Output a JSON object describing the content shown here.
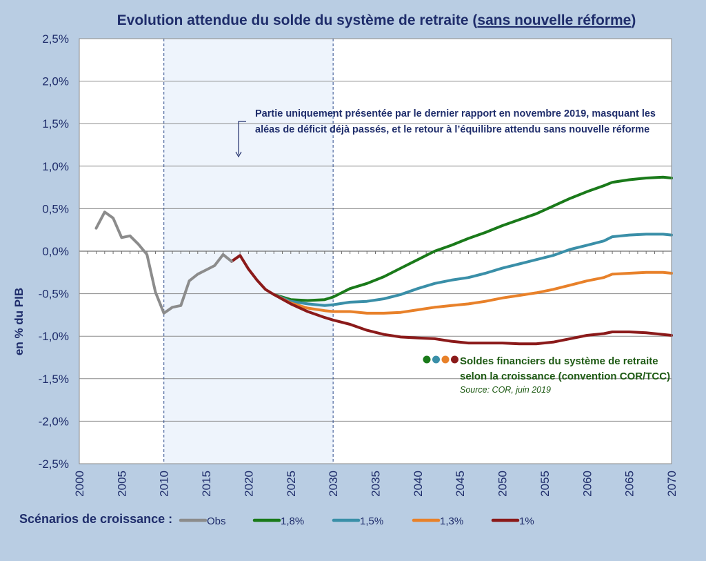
{
  "chart_data": {
    "type": "line",
    "title": {
      "prefix": "Evolution attendue du solde du système de retraite (",
      "underlined": "sans nouvelle réforme",
      "suffix": ")"
    },
    "ylabel": "en % du PIB",
    "xlim": [
      2000,
      2070
    ],
    "ylim": [
      -2.5,
      2.5
    ],
    "grid": true,
    "x_ticks": [
      2000,
      2005,
      2010,
      2015,
      2020,
      2025,
      2030,
      2035,
      2040,
      2045,
      2050,
      2055,
      2060,
      2065,
      2070
    ],
    "y_ticks": [
      {
        "value": 2.5,
        "label": "2,5%"
      },
      {
        "value": 2.0,
        "label": "2,0%"
      },
      {
        "value": 1.5,
        "label": "1,5%"
      },
      {
        "value": 1.0,
        "label": "1,0%"
      },
      {
        "value": 0.5,
        "label": "0,5%"
      },
      {
        "value": 0.0,
        "label": "0,0%"
      },
      {
        "value": -0.5,
        "label": "-0,5%"
      },
      {
        "value": -1.0,
        "label": "-1,0%"
      },
      {
        "value": -1.5,
        "label": "-1,5%"
      },
      {
        "value": -2.0,
        "label": "-2,0%"
      },
      {
        "value": -2.5,
        "label": "-2,5%"
      }
    ],
    "shaded_region": {
      "x_start": 2010,
      "x_end": 2030,
      "color": "#eef4fc"
    },
    "annotation": {
      "lines": [
        "Partie uniquement présentée par le dernier rapport en novembre 2019, masquant les",
        "aléas de déficit déjà passés, et le retour à l’équilibre attendu sans nouvelle réforme"
      ]
    },
    "inline_legend": {
      "lines": [
        "Soldes financiers du système de retraite",
        "selon la croissance (convention COR/TCC)"
      ],
      "source": "Source: COR, juin 2019",
      "dot_colors": [
        "#1a7a1a",
        "#3a8fa8",
        "#e8812a",
        "#8b1a1a"
      ]
    },
    "legend_title": "Scénarios de croissance :",
    "series": [
      {
        "name": "Obs",
        "color": "#8c8c8c",
        "x": [
          2002,
          2003,
          2004,
          2005,
          2006,
          2007,
          2008,
          2009,
          2010,
          2011,
          2012,
          2013,
          2014,
          2015,
          2016,
          2017,
          2018
        ],
        "y": [
          0.27,
          0.46,
          0.39,
          0.16,
          0.18,
          0.08,
          -0.04,
          -0.48,
          -0.73,
          -0.66,
          -0.64,
          -0.35,
          -0.27,
          -0.22,
          -0.17,
          -0.04,
          -0.12
        ]
      },
      {
        "name": "1,8%",
        "color": "#1a7a1a",
        "x": [
          2023,
          2025,
          2027,
          2029,
          2030,
          2032,
          2034,
          2036,
          2038,
          2040,
          2042,
          2044,
          2046,
          2048,
          2050,
          2052,
          2054,
          2056,
          2058,
          2060,
          2062,
          2063,
          2065,
          2067,
          2069,
          2070
        ],
        "y": [
          -0.51,
          -0.57,
          -0.58,
          -0.57,
          -0.54,
          -0.44,
          -0.38,
          -0.3,
          -0.2,
          -0.1,
          0.0,
          0.07,
          0.15,
          0.22,
          0.3,
          0.37,
          0.44,
          0.53,
          0.62,
          0.7,
          0.77,
          0.81,
          0.84,
          0.86,
          0.87,
          0.86
        ]
      },
      {
        "name": "1,5%",
        "color": "#3a8fa8",
        "x": [
          2023,
          2025,
          2027,
          2029,
          2030,
          2032,
          2034,
          2036,
          2038,
          2040,
          2042,
          2044,
          2046,
          2048,
          2050,
          2052,
          2054,
          2056,
          2058,
          2060,
          2062,
          2063,
          2065,
          2067,
          2069,
          2070
        ],
        "y": [
          -0.51,
          -0.59,
          -0.62,
          -0.64,
          -0.63,
          -0.6,
          -0.59,
          -0.56,
          -0.51,
          -0.44,
          -0.38,
          -0.34,
          -0.31,
          -0.26,
          -0.2,
          -0.15,
          -0.1,
          -0.05,
          0.02,
          0.07,
          0.12,
          0.17,
          0.19,
          0.2,
          0.2,
          0.19
        ]
      },
      {
        "name": "1,3%",
        "color": "#e8812a",
        "x": [
          2023,
          2025,
          2027,
          2029,
          2030,
          2032,
          2034,
          2036,
          2038,
          2040,
          2042,
          2044,
          2046,
          2048,
          2050,
          2052,
          2054,
          2056,
          2058,
          2060,
          2062,
          2063,
          2065,
          2067,
          2069,
          2070
        ],
        "y": [
          -0.51,
          -0.61,
          -0.67,
          -0.7,
          -0.71,
          -0.71,
          -0.73,
          -0.73,
          -0.72,
          -0.69,
          -0.66,
          -0.64,
          -0.62,
          -0.59,
          -0.55,
          -0.52,
          -0.49,
          -0.45,
          -0.4,
          -0.35,
          -0.31,
          -0.27,
          -0.26,
          -0.25,
          -0.25,
          -0.26
        ]
      },
      {
        "name": "1%",
        "color": "#8b1a1a",
        "x": [
          2018,
          2019,
          2020,
          2021,
          2022,
          2023,
          2025,
          2027,
          2029,
          2030,
          2032,
          2034,
          2036,
          2038,
          2040,
          2042,
          2044,
          2046,
          2048,
          2050,
          2052,
          2054,
          2056,
          2058,
          2060,
          2062,
          2063,
          2065,
          2067,
          2069,
          2070
        ],
        "y": [
          -0.12,
          -0.05,
          -0.21,
          -0.34,
          -0.45,
          -0.51,
          -0.62,
          -0.71,
          -0.78,
          -0.81,
          -0.86,
          -0.93,
          -0.98,
          -1.01,
          -1.02,
          -1.03,
          -1.06,
          -1.08,
          -1.08,
          -1.08,
          -1.09,
          -1.09,
          -1.07,
          -1.03,
          -0.99,
          -0.97,
          -0.95,
          -0.95,
          -0.96,
          -0.98,
          -0.99
        ]
      }
    ]
  }
}
